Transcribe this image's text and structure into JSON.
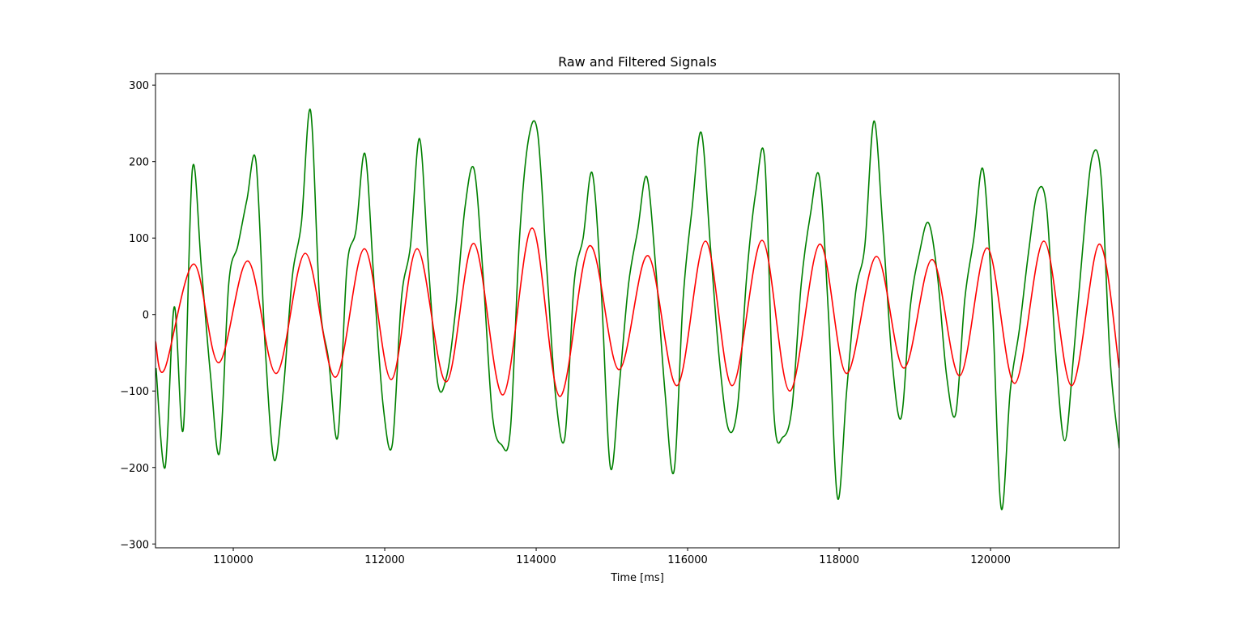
{
  "chart_data": {
    "type": "line",
    "title": "Raw and Filtered Signals",
    "xlabel": "Time [ms]",
    "xlim": [
      108973,
      121700
    ],
    "ylim": [
      -305,
      315
    ],
    "xticks": [
      110000,
      112000,
      114000,
      116000,
      118000,
      120000
    ],
    "yticks": [
      {
        "value": -300,
        "label": "−300"
      },
      {
        "value": -200,
        "label": "−200"
      },
      {
        "value": -100,
        "label": "−100"
      },
      0,
      100,
      200,
      300
    ],
    "grid": false,
    "series": [
      {
        "color": "#008000",
        "x": [
          108980,
          109100,
          109220,
          109340,
          109460,
          109580,
          109700,
          109820,
          109940,
          110060,
          110180,
          110300,
          110420,
          110540,
          110660,
          110780,
          110900,
          111020,
          111140,
          111260,
          111380,
          111500,
          111620,
          111740,
          111860,
          111980,
          112100,
          112220,
          112340,
          112460,
          112580,
          112700,
          112820,
          112940,
          113060,
          113180,
          113300,
          113420,
          113540,
          113660,
          113780,
          113900,
          114020,
          114140,
          114260,
          114380,
          114500,
          114620,
          114740,
          114860,
          114980,
          115100,
          115220,
          115340,
          115460,
          115580,
          115700,
          115820,
          115940,
          116060,
          116180,
          116300,
          116420,
          116540,
          116660,
          116780,
          116900,
          117020,
          117140,
          117260,
          117380,
          117500,
          117620,
          117740,
          117860,
          117980,
          118100,
          118220,
          118340,
          118460,
          118580,
          118700,
          118820,
          118940,
          119060,
          119180,
          119300,
          119420,
          119540,
          119660,
          119780,
          119900,
          120020,
          120140,
          120260,
          120380,
          120500,
          120620,
          120740,
          120860,
          120980,
          121100,
          121220,
          121340,
          121460,
          121580,
          121700
        ],
        "values": [
          -70,
          -200,
          10,
          -150,
          190,
          60,
          -80,
          -180,
          40,
          90,
          150,
          200,
          -40,
          -190,
          -100,
          50,
          120,
          267,
          20,
          -60,
          -160,
          60,
          110,
          210,
          40,
          -120,
          -170,
          20,
          90,
          230,
          60,
          -90,
          -80,
          10,
          140,
          190,
          50,
          -130,
          -170,
          -150,
          100,
          230,
          237,
          60,
          -110,
          -160,
          40,
          100,
          185,
          30,
          -200,
          -90,
          40,
          110,
          180,
          60,
          -100,
          -205,
          20,
          140,
          238,
          90,
          -60,
          -150,
          -120,
          50,
          160,
          200,
          -130,
          -160,
          -120,
          40,
          130,
          180,
          0,
          -240,
          -100,
          30,
          90,
          253,
          110,
          -60,
          -135,
          10,
          80,
          120,
          50,
          -80,
          -130,
          20,
          100,
          190,
          20,
          -253,
          -100,
          -20,
          80,
          160,
          140,
          -50,
          -165,
          -50,
          90,
          205,
          180,
          -60,
          -175
        ]
      },
      {
        "color": "#ff0000",
        "x": [
          108973,
          109091,
          109476,
          109807,
          110192,
          110567,
          110952,
          111347,
          111732,
          112085,
          112428,
          112812,
          113176,
          113561,
          113946,
          114310,
          114706,
          115091,
          115475,
          115860,
          116235,
          116588,
          116984,
          117347,
          117743,
          118096,
          118492,
          118855,
          119230,
          119593,
          119957,
          120320,
          120705,
          121069,
          121433,
          121700
        ],
        "values": [
          -35,
          -72,
          66,
          -63,
          70,
          -77,
          80,
          -82,
          86,
          -85,
          86,
          -88,
          93,
          -105,
          113,
          -107,
          90,
          -72,
          77,
          -93,
          96,
          -93,
          97,
          -100,
          92,
          -77,
          76,
          -70,
          72,
          -80,
          87,
          -90,
          96,
          -93,
          92,
          -70
        ]
      }
    ]
  }
}
